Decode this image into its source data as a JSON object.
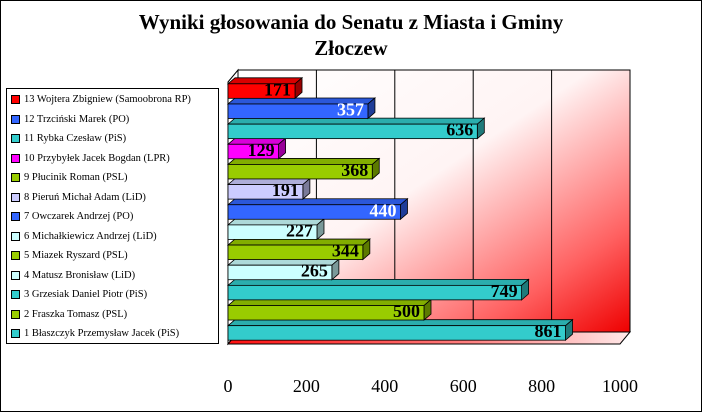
{
  "chart_data": {
    "type": "bar",
    "orientation": "horizontal",
    "style": "3d",
    "title": "Wyniki głosowania do Senatu z Miasta i Gminy",
    "subtitle": "Złoczew",
    "xlim": [
      0,
      1000
    ],
    "xticks": [
      "0",
      "200",
      "400",
      "600",
      "800",
      "1000"
    ],
    "grid": true,
    "legend_position": "left",
    "background": "gradient white to red",
    "categories": [
      "1 Błaszczyk Przemysław Jacek (PiS)",
      "2 Fraszka Tomasz (PSL)",
      "3 Grzesiak Daniel Piotr (PiS)",
      "4 Matusz Bronisław (LiD)",
      "5 Miazek Ryszard (PSL)",
      "6 Michałkiewicz Andrzej (LiD)",
      "7 Owczarek Andrzej (PO)",
      "8 Pieruń Michał Adam (LiD)",
      "9 Płucinik Roman (PSL)",
      "10 Przybyłek Jacek Bogdan (LPR)",
      "11 Rybka Czesław (PiS)",
      "12 Trzciński Marek (PO)",
      "13 Wojtera Zbigniew (Samoobrona RP)"
    ],
    "values": [
      861,
      500,
      749,
      265,
      344,
      227,
      440,
      191,
      368,
      129,
      636,
      357,
      171
    ],
    "colors": [
      "#33cccc",
      "#99cc00",
      "#33cccc",
      "#ccffff",
      "#99cc00",
      "#ccffff",
      "#3366ff",
      "#ccccff",
      "#99cc00",
      "#ff00ff",
      "#33cccc",
      "#3366ff",
      "#ff0000"
    ],
    "label_colors": [
      "#000000",
      "#000000",
      "#000000",
      "#000000",
      "#000000",
      "#000000",
      "#ffffff",
      "#000000",
      "#000000",
      "#000000",
      "#000000",
      "#ffffff",
      "#000000"
    ]
  }
}
